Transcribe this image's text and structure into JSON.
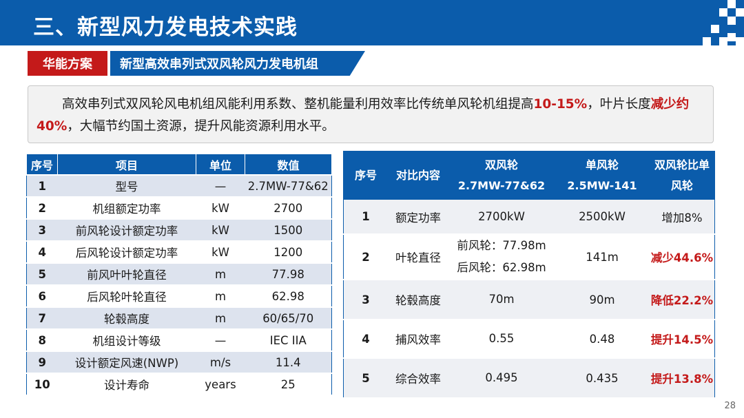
{
  "header": {
    "title": "三、新型风力发电技术实践"
  },
  "section": {
    "tag": "华能方案",
    "subtitle": "新型高效串列式双风轮风力发电机组"
  },
  "summary": {
    "part1": "高效串列式双风轮风电机组风能利用系数、整机能量利用效率比传统单风轮机组提高",
    "hl1": "10-15%",
    "part2": "，叶片长度",
    "hl2": "减少约40%",
    "part3": "，大幅节约国土资源，提升风能资源利用水平。"
  },
  "params_table": {
    "headers": [
      "序号",
      "项目",
      "单位",
      "数值"
    ],
    "rows": [
      [
        "1",
        "型号",
        "—",
        "2.7MW-77&62"
      ],
      [
        "2",
        "机组额定功率",
        "kW",
        "2700"
      ],
      [
        "3",
        "前风轮设计额定功率",
        "kW",
        "1500"
      ],
      [
        "4",
        "后风轮设计额定功率",
        "kW",
        "1200"
      ],
      [
        "5",
        "前风叶叶轮直径",
        "m",
        "77.98"
      ],
      [
        "6",
        "后风轮叶轮直径",
        "m",
        "62.98"
      ],
      [
        "7",
        "轮毂高度",
        "m",
        "60/65/70"
      ],
      [
        "8",
        "机组设计等级",
        "—",
        "IEC IIA"
      ],
      [
        "9",
        "设计额定风速(NWP)",
        "m/s",
        "11.4"
      ],
      [
        "10",
        "设计寿命",
        "years",
        "25"
      ]
    ]
  },
  "compare_table": {
    "headers": {
      "no": "序号",
      "item": "对比内容",
      "dual_1": "双风轮",
      "dual_2": "2.7MW-77&62",
      "single_1": "单风轮",
      "single_2": "2.5MW-141",
      "ratio_1": "双风轮比单",
      "ratio_2": "风轮"
    },
    "rows": [
      {
        "no": "1",
        "item": "额定功率",
        "dual": [
          "2700kW"
        ],
        "single": "2500kW",
        "ratio": "增加8%",
        "red": false
      },
      {
        "no": "2",
        "item": "叶轮直径",
        "dual": [
          "前风轮：77.98m",
          "后风轮：62.98m"
        ],
        "single": "141m",
        "ratio": "减少44.6%",
        "red": true
      },
      {
        "no": "3",
        "item": "轮毂高度",
        "dual": [
          "70m"
        ],
        "single": "90m",
        "ratio": "降低22.2%",
        "red": true
      },
      {
        "no": "4",
        "item": "捕风效率",
        "dual": [
          "0.55"
        ],
        "single": "0.48",
        "ratio": "提升14.5%",
        "red": true
      },
      {
        "no": "5",
        "item": "综合效率",
        "dual": [
          "0.495"
        ],
        "single": "0.435",
        "ratio": "提升13.8%",
        "red": true
      }
    ]
  },
  "page_number": "28"
}
